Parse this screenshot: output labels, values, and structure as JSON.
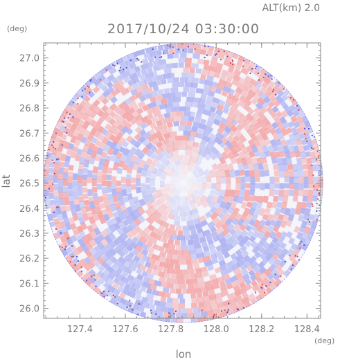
{
  "header": {
    "altitude_label": "ALT(km) 2.0",
    "datetime": "2017/10/24 03:30:00"
  },
  "chart_data": {
    "type": "heatmap",
    "subtype": "radar PPI scan (circular coverage, red/blue diverging values)",
    "title": "2017/10/24 03:30:00",
    "annotation": "ALT(km) 2.0",
    "xlabel": "lon",
    "ylabel": "lat",
    "x_unit": "(deg)",
    "y_unit": "(deg)",
    "xlim": [
      127.24,
      128.46
    ],
    "ylim": [
      25.96,
      27.06
    ],
    "x_ticks": [
      "127.4",
      "127.6",
      "127.8",
      "128.0",
      "128.2",
      "128.4"
    ],
    "y_ticks": [
      "27.0",
      "26.9",
      "26.8",
      "26.7",
      "26.6",
      "26.5",
      "26.4",
      "26.3",
      "26.2",
      "26.1",
      "26.0"
    ],
    "coverage_center": [
      127.855,
      26.5
    ],
    "grid": false,
    "colors": {
      "positive": "#f4a3a3",
      "negative": "#a9aef0",
      "neutral": "#f4f4fb",
      "frame": "#8a8a8a",
      "text": "#7a7a7a"
    }
  }
}
